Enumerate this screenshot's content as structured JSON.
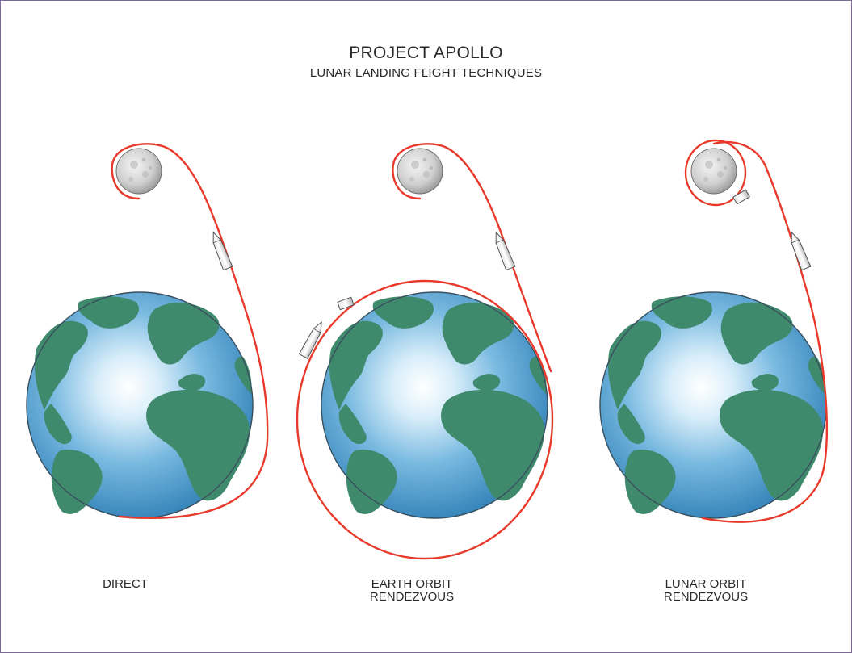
{
  "header": {
    "title": "PROJECT APOLLO",
    "subtitle": "LUNAR LANDING FLIGHT TECHNIQUES"
  },
  "panels": [
    {
      "lines": [
        "DIRECT"
      ]
    },
    {
      "lines": [
        "EARTH ORBIT",
        "RENDEZVOUS"
      ]
    },
    {
      "lines": [
        "LUNAR ORBIT",
        "RENDEZVOUS"
      ]
    }
  ],
  "colors": {
    "trajectory": "#e8392b",
    "earth_ocean": "#4a98c8",
    "earth_land": "#3f8a6c",
    "moon": "#cfcfcf",
    "frame": "#7b6a93"
  },
  "icons": [
    "earth-icon",
    "moon-icon",
    "spacecraft-icon",
    "docking-module-icon"
  ]
}
